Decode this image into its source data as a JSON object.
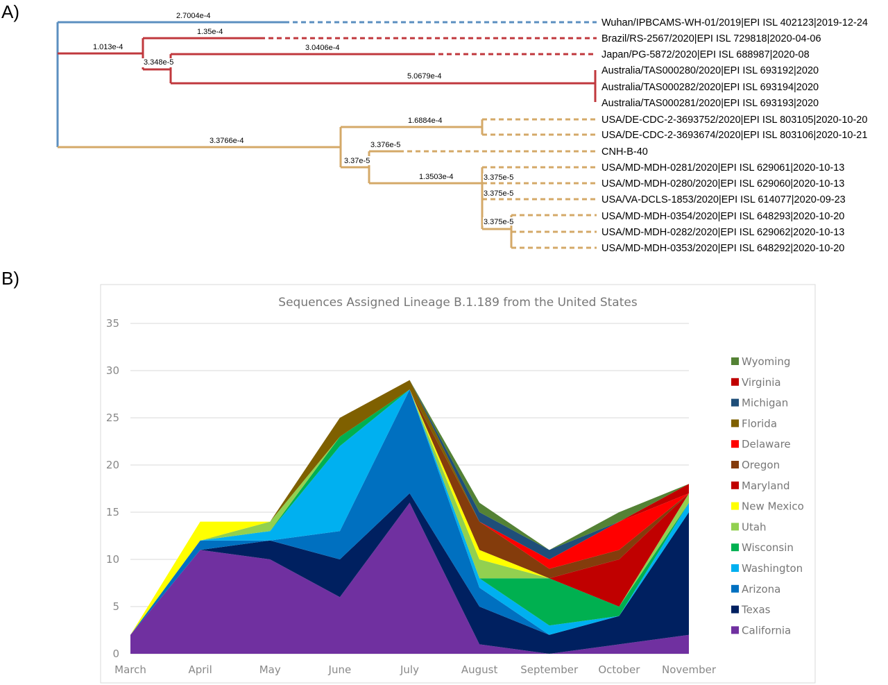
{
  "panels": {
    "a_label": "A)",
    "b_label": "B)"
  },
  "tree": {
    "colors": {
      "root_blue": "#5b8fc0",
      "clade_red": "#c0383d",
      "clade_tan": "#d4a968"
    },
    "leaves": [
      "Wuhan/IPBCAMS-WH-01/2019|EPI ISL 402123|2019-12-24",
      "Brazil/RS-2567/2020|EPI ISL 729818|2020-04-06",
      "Japan/PG-5872/2020|EPI ISL 688987|2020-08",
      "Australia/TAS000280/2020|EPI ISL 693192|2020",
      "Australia/TAS000282/2020|EPI ISL 693194|2020",
      "Australia/TAS000281/2020|EPI ISL 693193|2020",
      "USA/DE-CDC-2-3693752/2020|EPI ISL 803105|2020-10-20",
      "USA/DE-CDC-2-3693674/2020|EPI ISL 803106|2020-10-21",
      "CNH-B-40",
      "USA/MD-MDH-0281/2020|EPI ISL 629061|2020-10-13",
      "USA/MD-MDH-0280/2020|EPI ISL 629060|2020-10-13",
      "USA/VA-DCLS-1853/2020|EPI ISL 614077|2020-09-23",
      "USA/MD-MDH-0354/2020|EPI ISL 648293|2020-10-20",
      "USA/MD-MDH-0282/2020|EPI ISL 629062|2020-10-13",
      "USA/MD-MDH-0353/2020|EPI ISL 648292|2020-10-20"
    ],
    "branch_lengths": {
      "wuhan": "2.7004e-4",
      "red_clade": "1.013e-4",
      "brazil": "1.35e-4",
      "red_inner": "3.348e-5",
      "japan": "3.0406e-4",
      "australia": "5.0679e-4",
      "tan_clade": "3.3766e-4",
      "de_pair": "1.6884e-4",
      "tan_inner": "3.37e-5",
      "cnh": "3.376e-5",
      "md_clade": "1.3503e-4",
      "md_281": "3.375e-5",
      "va": "3.375e-5",
      "md_sub": "3.375e-5"
    }
  },
  "chart_data": {
    "type": "area",
    "stacked": true,
    "title": "Sequences Assigned Lineage B.1.189 from the United States",
    "xlabel": "",
    "ylabel": "",
    "categories": [
      "March",
      "April",
      "May",
      "June",
      "July",
      "August",
      "September",
      "October",
      "November"
    ],
    "ylim": [
      0,
      35
    ],
    "yticks": [
      0,
      5,
      10,
      15,
      20,
      25,
      30,
      35
    ],
    "grid": true,
    "legend_position": "right",
    "series": [
      {
        "name": "California",
        "color": "#7030a0",
        "values": [
          2,
          11,
          10,
          6,
          16,
          1,
          0,
          1,
          2
        ]
      },
      {
        "name": "Texas",
        "color": "#002060",
        "values": [
          0,
          0,
          2,
          4,
          1,
          4,
          2,
          3,
          13
        ]
      },
      {
        "name": "Arizona",
        "color": "#0070c0",
        "values": [
          0,
          1,
          0,
          3,
          11,
          2,
          0,
          0,
          0
        ]
      },
      {
        "name": "Washington",
        "color": "#00b0f0",
        "values": [
          0,
          0,
          1,
          9,
          0,
          1,
          1,
          0,
          1
        ]
      },
      {
        "name": "Wisconsin",
        "color": "#00b050",
        "values": [
          0,
          0,
          0,
          1,
          0,
          0,
          5,
          1,
          0
        ]
      },
      {
        "name": "Utah",
        "color": "#92d050",
        "values": [
          0,
          0,
          1,
          0,
          0,
          2,
          0,
          0,
          1
        ]
      },
      {
        "name": "New Mexico",
        "color": "#ffff00",
        "values": [
          0,
          2,
          0,
          0,
          0,
          1,
          0,
          0,
          0
        ]
      },
      {
        "name": "Maryland",
        "color": "#c00000",
        "values": [
          0,
          0,
          0,
          0,
          0,
          0,
          0,
          5,
          0
        ]
      },
      {
        "name": "Oregon",
        "color": "#843c0c",
        "values": [
          0,
          0,
          0,
          0,
          0,
          3,
          1,
          1,
          0
        ]
      },
      {
        "name": "Delaware",
        "color": "#ff0000",
        "values": [
          0,
          0,
          0,
          0,
          0,
          0,
          1,
          3,
          0
        ]
      },
      {
        "name": "Florida",
        "color": "#7f6000",
        "values": [
          0,
          0,
          0,
          2,
          1,
          0,
          0,
          0,
          0
        ]
      },
      {
        "name": "Michigan",
        "color": "#1f4e79",
        "values": [
          0,
          0,
          0,
          0,
          0,
          1,
          1,
          0,
          0
        ]
      },
      {
        "name": "Virginia",
        "color": "#c00000",
        "values": [
          0,
          0,
          0,
          0,
          0,
          0,
          0,
          0,
          1
        ]
      },
      {
        "name": "Wyoming",
        "color": "#548235",
        "values": [
          0,
          0,
          0,
          0,
          0,
          1,
          0,
          1,
          0
        ]
      }
    ]
  }
}
